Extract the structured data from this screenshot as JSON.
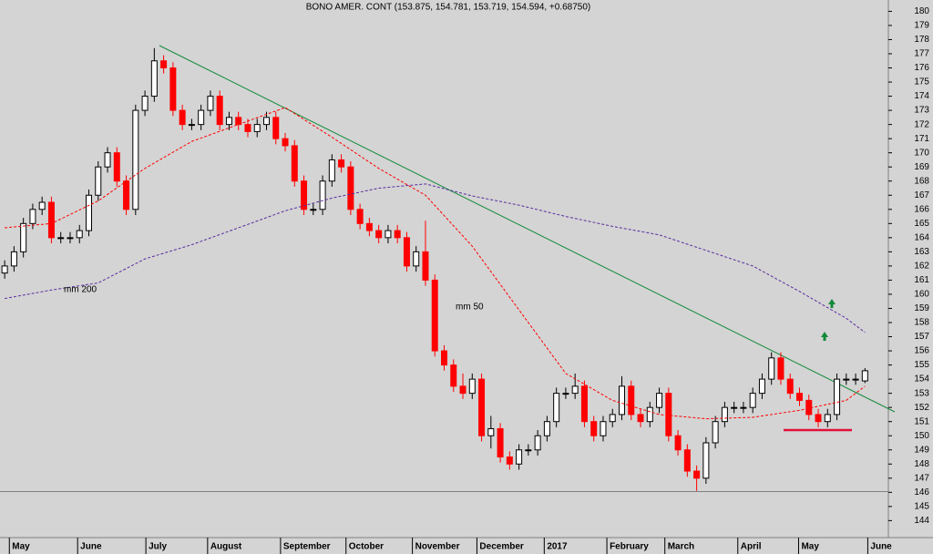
{
  "chart_data": {
    "type": "candlestick",
    "title": "BONO AMER. CONT (153.875, 154.781, 153.719, 154.594, +0.68750)",
    "up_color": "#000000",
    "down_color": "#ff0000",
    "xlim": [
      -0.5,
      94.5
    ],
    "xticks": [
      {
        "value": 0.5,
        "label": "May"
      },
      {
        "value": 7.8,
        "label": "June"
      },
      {
        "value": 15.1,
        "label": "July"
      },
      {
        "value": 21.7,
        "label": "August"
      },
      {
        "value": 29.5,
        "label": "September"
      },
      {
        "value": 36.5,
        "label": "October"
      },
      {
        "value": 43.6,
        "label": "November"
      },
      {
        "value": 50.5,
        "label": "December"
      },
      {
        "value": 57.7,
        "label": "2017"
      },
      {
        "value": 64.4,
        "label": "February"
      },
      {
        "value": 70.6,
        "label": "March"
      },
      {
        "value": 78.4,
        "label": "April"
      },
      {
        "value": 84.9,
        "label": "May"
      },
      {
        "value": 92.3,
        "label": "June"
      }
    ],
    "ylim": [
      142.8,
      180.8
    ],
    "yticks": [
      144,
      145,
      146,
      147,
      148,
      149,
      150,
      151,
      152,
      153,
      154,
      155,
      156,
      157,
      158,
      159,
      160,
      161,
      162,
      163,
      164,
      165,
      166,
      167,
      168,
      169,
      170,
      171,
      172,
      173,
      174,
      175,
      176,
      177,
      178,
      179,
      180
    ],
    "open": [
      161.5,
      162,
      163,
      165,
      166,
      166.5,
      164,
      164,
      164,
      164.5,
      167,
      169,
      170,
      168,
      166,
      173,
      174,
      176.5,
      176,
      173,
      172,
      172,
      173,
      174,
      172,
      172.5,
      172,
      171.5,
      172,
      172.5,
      171,
      170.5,
      168,
      166,
      166,
      168,
      169.5,
      169,
      166,
      165,
      164.5,
      164,
      164.5,
      164,
      162,
      163,
      161,
      156,
      155,
      153.5,
      153,
      154,
      150,
      150.5,
      148.5,
      148,
      149,
      149,
      150,
      151,
      153,
      153,
      153.5,
      151,
      150,
      151,
      151.5,
      153.5,
      151.5,
      151,
      152,
      153,
      150,
      149,
      147.5,
      147,
      149.5,
      151,
      152,
      152,
      152,
      153,
      154,
      155.5,
      154,
      153,
      152.5,
      151.5,
      151,
      151.5,
      154,
      154,
      153.875
    ],
    "high": [
      162.4,
      163.4,
      165.4,
      166.4,
      166.9,
      166.9,
      164.4,
      164.4,
      164.9,
      167.4,
      169.4,
      170.4,
      170.4,
      168.4,
      173.4,
      174.4,
      177.4,
      176.9,
      176.4,
      173.4,
      172.4,
      173.4,
      174.4,
      174.4,
      172.9,
      172.9,
      172.4,
      172.4,
      172.9,
      172.9,
      171.4,
      170.9,
      168.4,
      166.4,
      168.4,
      169.9,
      169.9,
      169.4,
      166.4,
      165.4,
      164.9,
      164.9,
      164.9,
      164.4,
      163.4,
      165.2,
      161.4,
      156.4,
      155.4,
      154.4,
      154.4,
      154.4,
      151.4,
      150.9,
      148.9,
      149.4,
      149.4,
      150.4,
      151.4,
      153.4,
      153.4,
      154.4,
      153.9,
      151.4,
      151.4,
      151.9,
      154.2,
      153.9,
      151.9,
      152.4,
      153.4,
      153.4,
      150.4,
      149.4,
      147.9,
      149.9,
      151.4,
      152.4,
      152.4,
      152.4,
      153.4,
      154.4,
      155.9,
      155.9,
      154.4,
      153.4,
      152.9,
      151.9,
      151.9,
      154.4,
      154.4,
      154.4,
      154.781
    ],
    "low": [
      161.1,
      161.6,
      162.6,
      164.6,
      165.6,
      163.6,
      163.6,
      163.6,
      163.6,
      164.1,
      166.6,
      168.6,
      167.6,
      165.6,
      165.6,
      172.6,
      173.6,
      175.6,
      172.6,
      171.6,
      171.6,
      171.6,
      172.6,
      171.6,
      171.6,
      171.6,
      171.1,
      171.1,
      171.6,
      170.6,
      170.1,
      167.6,
      165.6,
      165.6,
      165.6,
      167.6,
      168.6,
      165.6,
      164.6,
      164.1,
      163.6,
      163.6,
      163.6,
      161.6,
      161.6,
      160.6,
      155.6,
      154.6,
      153.1,
      152.6,
      152.6,
      149.6,
      149.1,
      148.1,
      147.6,
      147.6,
      148.6,
      148.6,
      149.6,
      150.6,
      152.6,
      152.6,
      150.6,
      149.6,
      149.6,
      150.6,
      151.1,
      151.1,
      150.6,
      150.6,
      151.6,
      149.6,
      148.6,
      147.1,
      146.1,
      146.6,
      149.1,
      150.6,
      151.6,
      151.6,
      151.6,
      152.6,
      153.6,
      153.6,
      152.6,
      152.1,
      151.1,
      150.6,
      150.6,
      151.1,
      153.6,
      153.6,
      153.719
    ],
    "close": [
      162,
      163,
      165,
      166,
      166.5,
      164,
      164,
      164,
      164.5,
      167,
      169,
      170,
      168,
      166,
      173,
      174,
      176.5,
      176,
      173,
      172,
      172,
      173,
      174,
      172,
      172.5,
      172,
      171.5,
      172,
      172.5,
      171,
      170.5,
      168,
      166,
      166,
      168,
      169.5,
      169,
      166,
      165,
      164.5,
      164,
      164.5,
      164,
      162,
      163,
      161,
      156,
      155,
      153.5,
      153,
      154,
      150,
      150.5,
      148.5,
      148,
      149,
      149,
      150,
      151,
      153,
      153,
      153.5,
      151,
      150,
      151,
      151.5,
      153.5,
      151.5,
      151,
      152,
      153,
      150,
      149,
      147.5,
      147,
      149.5,
      151,
      152,
      152,
      152,
      153,
      154,
      155.5,
      154,
      153,
      152.5,
      151.5,
      151,
      151.5,
      154,
      154,
      154,
      154.594
    ],
    "series": [
      {
        "name": "mm 200",
        "color": "#5a2ca0",
        "x": [
          0,
          5,
          10,
          15,
          20,
          25,
          30,
          35,
          40,
          45,
          50,
          55,
          60,
          65,
          70,
          75,
          80,
          85,
          90,
          92
        ],
        "values": [
          159.7,
          160.3,
          160.8,
          162.5,
          163.5,
          164.7,
          165.9,
          166.8,
          167.5,
          167.8,
          166.95,
          166.3,
          165.5,
          164.8,
          164.2,
          163.1,
          162,
          160.2,
          158.3,
          157.3
        ]
      },
      {
        "name": "mm 50",
        "color": "#ff0000",
        "x": [
          0,
          5,
          10,
          15,
          20,
          25,
          30,
          35,
          40,
          45,
          50,
          55,
          60,
          65,
          70,
          75,
          80,
          85,
          90,
          92
        ],
        "values": [
          164.7,
          165,
          166.6,
          168.9,
          170.8,
          172,
          173.2,
          171.1,
          168.9,
          167,
          163.4,
          158.9,
          154.4,
          152.5,
          151.5,
          151.2,
          151.3,
          151.8,
          152.5,
          153.5
        ]
      }
    ]
  }
}
